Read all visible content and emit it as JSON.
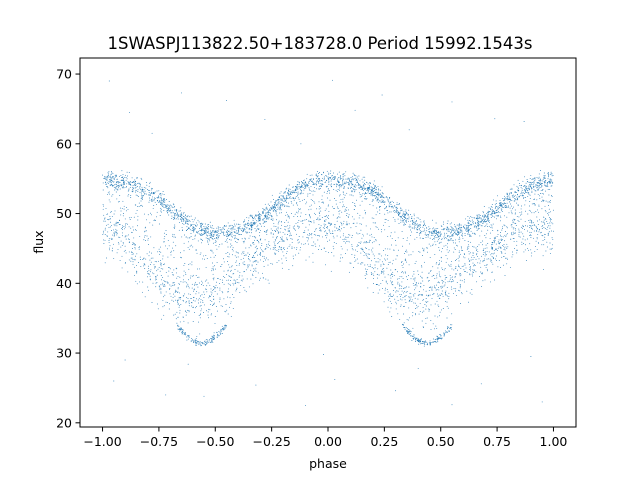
{
  "chart_data": {
    "type": "scatter",
    "title": "1SWASPJ113822.50+183728.0 Period 15992.1543s",
    "xlabel": "phase",
    "ylabel": "flux",
    "xlim": [
      -1.1,
      1.1
    ],
    "ylim": [
      19.4,
      72.3
    ],
    "xticks": [
      -1.0,
      -0.75,
      -0.5,
      -0.25,
      0.0,
      0.25,
      0.5,
      0.75,
      1.0
    ],
    "xtick_labels": [
      "−1.00",
      "−0.75",
      "−0.50",
      "−0.25",
      "0.00",
      "0.25",
      "0.50",
      "0.75",
      "1.00"
    ],
    "yticks": [
      20,
      30,
      40,
      50,
      60,
      70
    ],
    "ytick_labels": [
      "20",
      "30",
      "40",
      "50",
      "60",
      "70"
    ],
    "grid": false,
    "legend": "none",
    "point_color": "#1f77b4",
    "series": [
      {
        "description": "folded light curve, phase -1 to 1 (two cycles)",
        "profile": {
          "phase": [
            0.0,
            0.05,
            0.1,
            0.15,
            0.2,
            0.25,
            0.3,
            0.35,
            0.4,
            0.45,
            0.5,
            0.55,
            0.6,
            0.65,
            0.7,
            0.75,
            0.8,
            0.85,
            0.9,
            0.95,
            1.0
          ],
          "upper_flux": [
            55.0,
            54.6,
            54.4,
            53.9,
            53.2,
            52.0,
            50.6,
            49.4,
            48.2,
            47.5,
            47.1,
            47.4,
            47.8,
            48.4,
            49.5,
            50.7,
            52.1,
            53.3,
            54.1,
            54.5,
            55.0
          ],
          "lower_flux": [
            47.0,
            46.5,
            45.5,
            44.0,
            42.0,
            40.0,
            38.5,
            37.5,
            37.0,
            37.0,
            38.0,
            39.5,
            41.0,
            42.5,
            43.5,
            44.5,
            45.5,
            46.5,
            47.0,
            47.2,
            47.0
          ]
        },
        "dip_branch": {
          "phase_range": [
            0.33,
            0.55
          ],
          "flux_range": [
            31,
            34
          ]
        },
        "outliers": [
          [
            -0.97,
            69.0
          ],
          [
            -0.65,
            67.3
          ],
          [
            -0.45,
            66.2
          ],
          [
            -0.28,
            63.5
          ],
          [
            0.02,
            69.1
          ],
          [
            0.24,
            67.0
          ],
          [
            0.55,
            66.0
          ],
          [
            0.74,
            63.6
          ],
          [
            -0.88,
            64.5
          ],
          [
            -0.78,
            61.5
          ],
          [
            -0.12,
            60.0
          ],
          [
            0.12,
            64.8
          ],
          [
            0.36,
            62.0
          ],
          [
            0.87,
            63.2
          ],
          [
            -0.95,
            26.0
          ],
          [
            -0.72,
            24.0
          ],
          [
            -0.55,
            23.8
          ],
          [
            -0.32,
            25.4
          ],
          [
            -0.1,
            22.5
          ],
          [
            0.03,
            26.2
          ],
          [
            0.3,
            24.6
          ],
          [
            0.55,
            22.6
          ],
          [
            0.68,
            25.6
          ],
          [
            0.95,
            23.0
          ],
          [
            -0.9,
            29.0
          ],
          [
            -0.62,
            28.4
          ],
          [
            -0.02,
            29.8
          ],
          [
            0.4,
            27.8
          ],
          [
            0.9,
            29.5
          ]
        ]
      }
    ]
  }
}
